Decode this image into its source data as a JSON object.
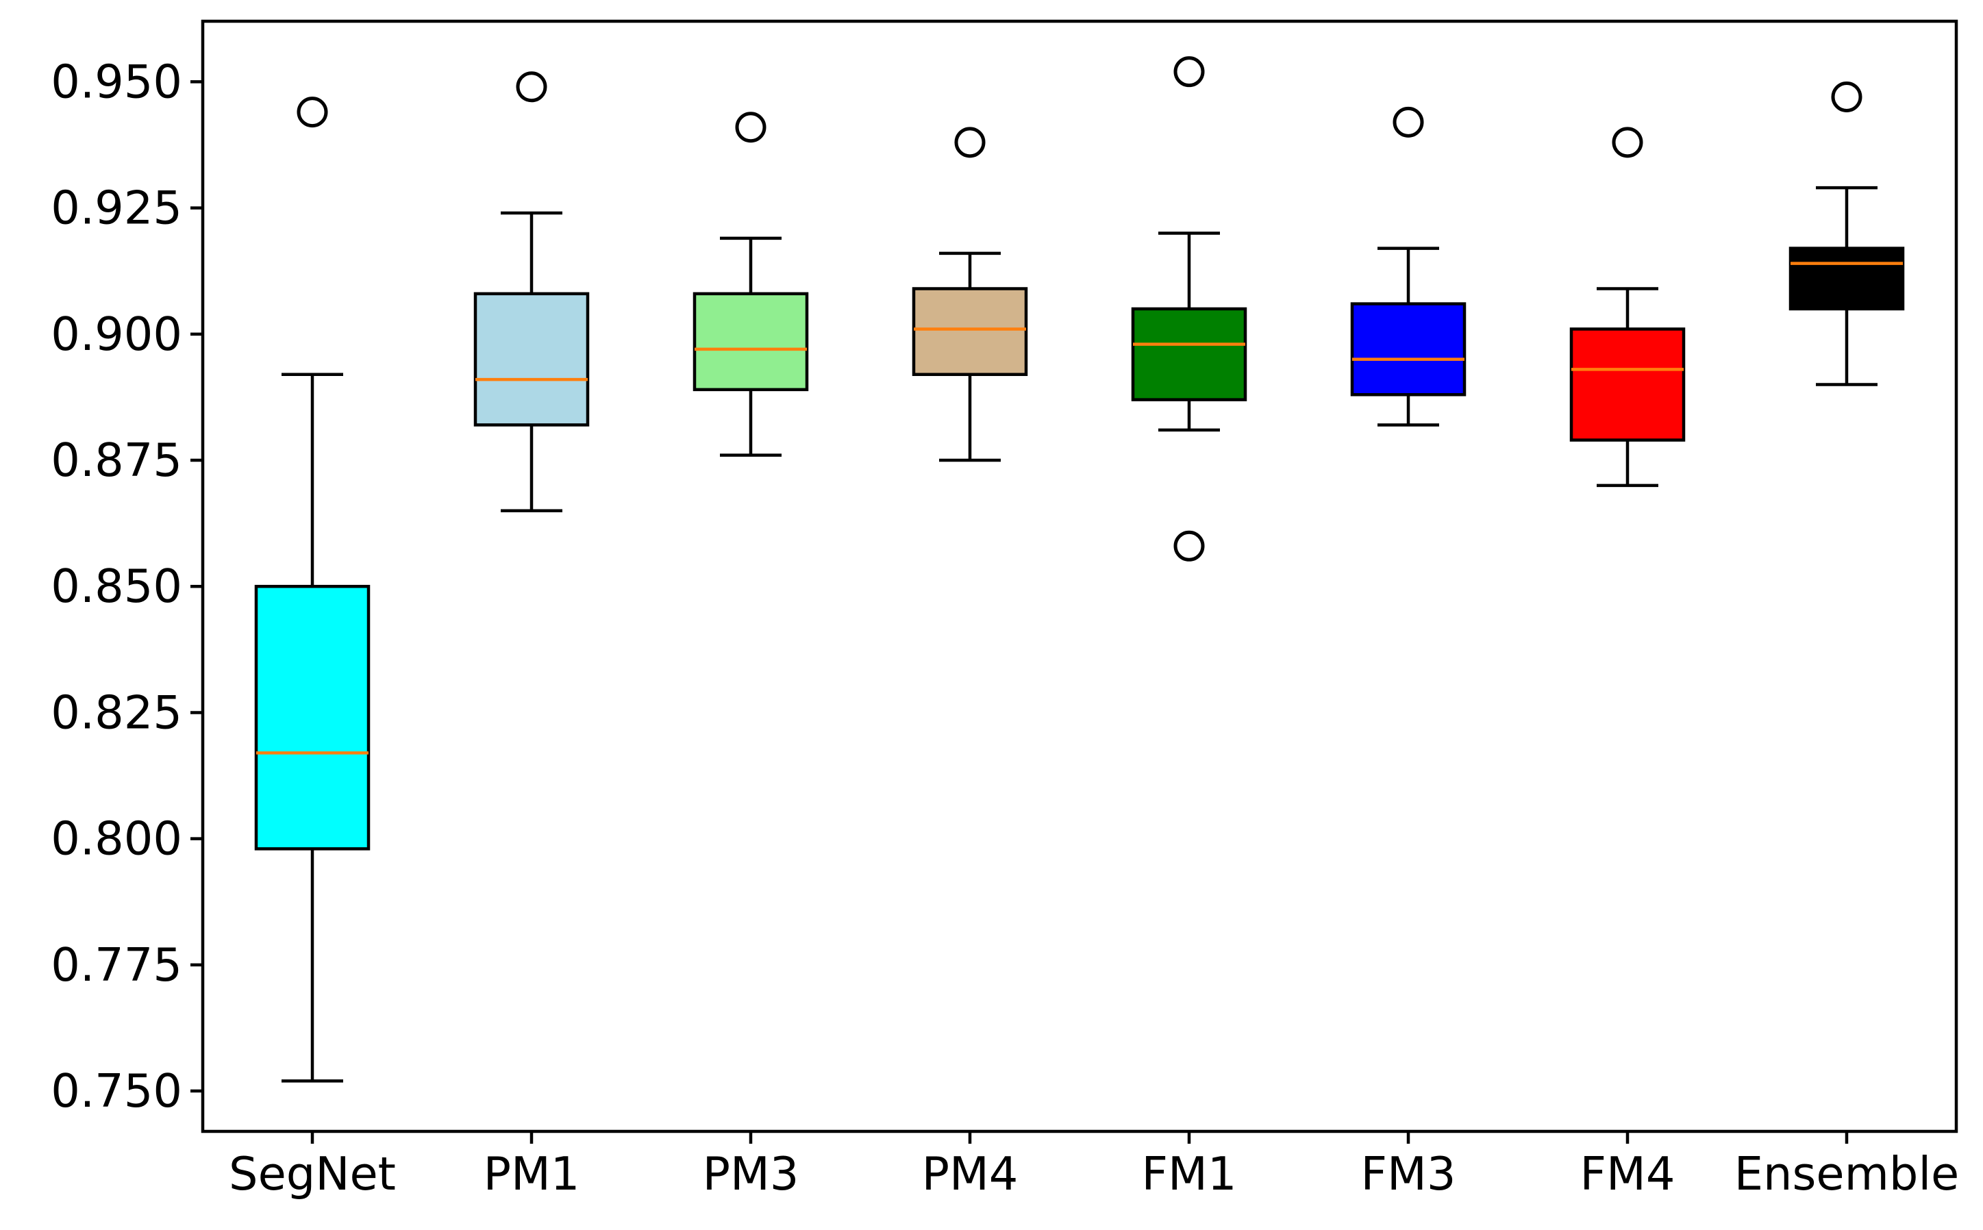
{
  "chart_data": {
    "type": "box",
    "title": "",
    "xlabel": "",
    "ylabel": "",
    "ylim": [
      0.742,
      0.962
    ],
    "yticks": [
      "0.750",
      "0.775",
      "0.800",
      "0.825",
      "0.850",
      "0.875",
      "0.900",
      "0.925",
      "0.950"
    ],
    "categories": [
      "SegNet",
      "PM1",
      "PM3",
      "PM4",
      "FM1",
      "FM3",
      "FM4",
      "Ensemble"
    ],
    "series": [
      {
        "name": "SegNet",
        "color": "#00ffff",
        "whisker_low": 0.752,
        "q1": 0.798,
        "median": 0.817,
        "q3": 0.85,
        "whisker_high": 0.892,
        "outliers": [
          0.944
        ]
      },
      {
        "name": "PM1",
        "color": "#add8e6",
        "whisker_low": 0.865,
        "q1": 0.882,
        "median": 0.891,
        "q3": 0.908,
        "whisker_high": 0.924,
        "outliers": [
          0.949
        ]
      },
      {
        "name": "PM3",
        "color": "#90ee90",
        "whisker_low": 0.876,
        "q1": 0.889,
        "median": 0.897,
        "q3": 0.908,
        "whisker_high": 0.919,
        "outliers": [
          0.941
        ]
      },
      {
        "name": "PM4",
        "color": "#d2b48c",
        "whisker_low": 0.875,
        "q1": 0.892,
        "median": 0.901,
        "q3": 0.909,
        "whisker_high": 0.916,
        "outliers": [
          0.938
        ]
      },
      {
        "name": "FM1",
        "color": "#008000",
        "whisker_low": 0.881,
        "q1": 0.887,
        "median": 0.898,
        "q3": 0.905,
        "whisker_high": 0.92,
        "outliers": [
          0.952,
          0.858
        ]
      },
      {
        "name": "FM3",
        "color": "#0000ff",
        "whisker_low": 0.882,
        "q1": 0.888,
        "median": 0.895,
        "q3": 0.906,
        "whisker_high": 0.917,
        "outliers": [
          0.942
        ]
      },
      {
        "name": "FM4",
        "color": "#ff0000",
        "whisker_low": 0.87,
        "q1": 0.879,
        "median": 0.893,
        "q3": 0.901,
        "whisker_high": 0.909,
        "outliers": [
          0.938
        ]
      },
      {
        "name": "Ensemble",
        "color": "#000000",
        "whisker_low": 0.89,
        "q1": 0.905,
        "median": 0.914,
        "q3": 0.917,
        "whisker_high": 0.929,
        "outliers": [
          0.947
        ]
      }
    ],
    "median_color": "#ff7f0e",
    "grid": false,
    "legend": "none"
  }
}
